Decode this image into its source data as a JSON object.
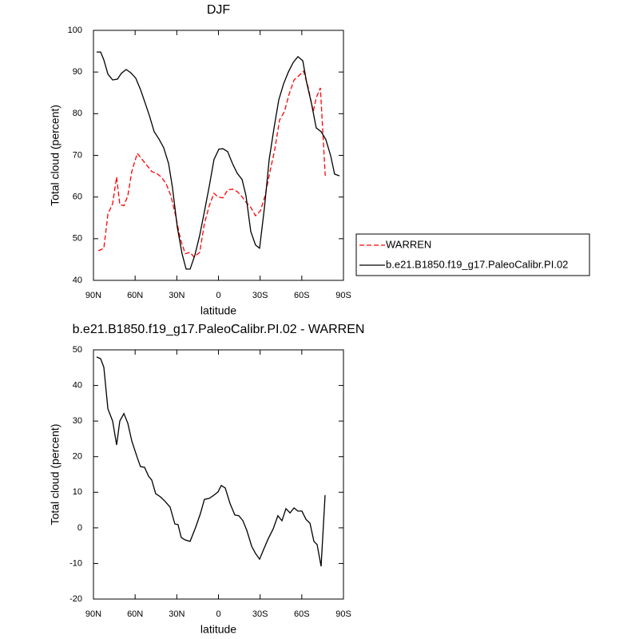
{
  "chart_data": [
    {
      "type": "line",
      "title": "DJF",
      "xlabel": "latitude",
      "ylabel": "Total cloud (percent)",
      "xlim": [
        90,
        -90
      ],
      "xticks": [
        {
          "value": 90,
          "label": "90N"
        },
        {
          "value": 60,
          "label": "60N"
        },
        {
          "value": 30,
          "label": "30N"
        },
        0,
        {
          "value": -30,
          "label": "30S"
        },
        {
          "value": -60,
          "label": "60S"
        },
        {
          "value": -90,
          "label": "90S"
        }
      ],
      "ylim": [
        40,
        100
      ],
      "yticks": [
        40,
        50,
        60,
        70,
        80,
        90,
        100
      ],
      "legend": "right",
      "series": [
        {
          "name": "WARREN",
          "color": "#ff0000",
          "linestyle": "dashed",
          "x": [
            86.5,
            82.5,
            79.6,
            76.2,
            73.3,
            71.0,
            68.1,
            65.3,
            62.4,
            58.4,
            54.9,
            51.5,
            48.0,
            44.6,
            41.1,
            37.7,
            34.2,
            30.8,
            27.3,
            23.9,
            20.4,
            17.6,
            13.5,
            10.1,
            6.6,
            3.2,
            0.3,
            -3.2,
            -6.6,
            -10.1,
            -13.5,
            -16.4,
            -19.8,
            -23.3,
            -26.7,
            -30.2,
            -33.6,
            -37.1,
            -40.5,
            -44.0,
            -47.5,
            -50.9,
            -54.4,
            -57.8,
            -61.3,
            -64.7,
            -68.2,
            -70.5,
            -73.4,
            -76.9
          ],
          "values": [
            47.1,
            47.7,
            55.9,
            58.4,
            64.8,
            58.2,
            57.9,
            60.3,
            66.1,
            70.5,
            69.0,
            67.6,
            66.1,
            65.7,
            64.8,
            63.2,
            60.3,
            55.5,
            49.8,
            46.4,
            46.7,
            45.6,
            46.7,
            53.6,
            57.9,
            60.9,
            60.0,
            59.8,
            61.7,
            61.9,
            61.3,
            60.3,
            58.8,
            57.5,
            55.5,
            56.7,
            60.3,
            66.1,
            71.3,
            78.5,
            80.5,
            84.7,
            88.1,
            89.1,
            90.2,
            86.2,
            80.5,
            83.9,
            86.2,
            65.1
          ]
        },
        {
          "name": "b.e21.B1850.f19_g17.PaleoCalibr.PI.02",
          "color": "#000000",
          "linestyle": "solid",
          "x": [
            87.7,
            84.8,
            82.5,
            79.6,
            76.2,
            72.7,
            69.9,
            66.4,
            63.0,
            59.5,
            56.1,
            52.6,
            49.7,
            46.3,
            42.8,
            39.4,
            35.9,
            33.1,
            29.6,
            26.2,
            23.3,
            20.4,
            17.0,
            13.5,
            10.1,
            6.6,
            3.2,
            -0.3,
            -3.2,
            -6.6,
            -10.1,
            -13.5,
            -17.0,
            -19.8,
            -23.3,
            -26.7,
            -29.6,
            -33.1,
            -36.5,
            -40.0,
            -43.4,
            -46.9,
            -50.3,
            -53.8,
            -57.2,
            -60.7,
            -63.5,
            -67.0,
            -70.4,
            -73.9,
            -77.3,
            -80.8,
            -83.6,
            -87.1
          ],
          "values": [
            94.8,
            94.8,
            92.9,
            89.5,
            88.1,
            88.3,
            89.7,
            90.6,
            89.8,
            88.5,
            85.8,
            82.4,
            79.5,
            75.7,
            73.9,
            71.8,
            68.0,
            62.3,
            52.7,
            46.4,
            42.7,
            42.7,
            46.0,
            50.8,
            56.5,
            62.6,
            69.0,
            71.5,
            71.6,
            70.9,
            68.0,
            65.7,
            64.2,
            60.4,
            51.7,
            48.5,
            47.7,
            57.5,
            69.0,
            76.6,
            83.3,
            87.2,
            90.0,
            92.3,
            93.7,
            92.7,
            87.5,
            82.4,
            76.6,
            75.7,
            73.8,
            69.9,
            65.5,
            65.1
          ]
        }
      ]
    },
    {
      "type": "line",
      "title": "b.e21.B1850.f19_g17.PaleoCalibr.PI.02 - WARREN",
      "xlabel": "latitude",
      "ylabel": "Total cloud (percent)",
      "xlim": [
        90,
        -90
      ],
      "xticks": [
        {
          "value": 90,
          "label": "90N"
        },
        {
          "value": 60,
          "label": "60N"
        },
        {
          "value": 30,
          "label": "30N"
        },
        0,
        {
          "value": -30,
          "label": "30S"
        },
        {
          "value": -60,
          "label": "60S"
        },
        {
          "value": -90,
          "label": "90S"
        }
      ],
      "ylim": [
        -20,
        50
      ],
      "yticks": [
        -20,
        -10,
        0,
        10,
        20,
        30,
        40,
        50
      ],
      "series": [
        {
          "color": "#000000",
          "linestyle": "solid",
          "x": [
            87.7,
            84.8,
            82.5,
            79.6,
            76.2,
            73.3,
            71.0,
            68.1,
            65.3,
            62.4,
            58.4,
            56.1,
            53.2,
            50.3,
            48.0,
            45.2,
            41.7,
            38.3,
            34.8,
            31.4,
            29.1,
            26.8,
            23.9,
            20.4,
            16.4,
            13.0,
            10.1,
            6.6,
            3.2,
            0.3,
            -2.0,
            -4.9,
            -8.3,
            -11.8,
            -14.7,
            -17.6,
            -20.4,
            -23.9,
            -26.7,
            -29.6,
            -32.5,
            -35.9,
            -39.4,
            -42.8,
            -45.7,
            -48.6,
            -51.5,
            -54.4,
            -57.2,
            -60.1,
            -63.0,
            -65.9,
            -68.7,
            -71.0,
            -73.9,
            -76.8
          ],
          "values": [
            48.0,
            47.5,
            45.1,
            33.4,
            30.0,
            23.3,
            30.0,
            32.1,
            29.4,
            24.4,
            19.7,
            17.2,
            17.0,
            14.5,
            13.4,
            9.6,
            8.7,
            7.4,
            5.8,
            1.1,
            0.9,
            -2.7,
            -3.4,
            -3.8,
            0.2,
            4.0,
            8.0,
            8.3,
            9.2,
            10.1,
            11.9,
            11.2,
            6.9,
            3.6,
            3.4,
            2.0,
            -0.7,
            -5.2,
            -7.2,
            -8.8,
            -6.1,
            -3.0,
            -0.3,
            3.4,
            2.0,
            5.4,
            4.2,
            5.6,
            4.7,
            4.7,
            2.4,
            1.3,
            -3.8,
            -4.7,
            -10.8,
            9.2
          ]
        }
      ]
    }
  ]
}
